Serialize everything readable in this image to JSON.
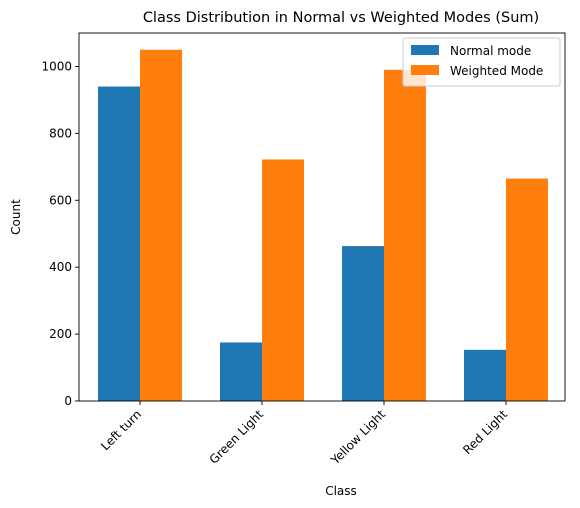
{
  "chart_data": {
    "type": "bar",
    "title": "Class Distribution in Normal vs Weighted Modes (Sum)",
    "xlabel": "Class",
    "ylabel": "Count",
    "categories": [
      "Left turn",
      "Green Light",
      "Yellow Light",
      "Red Light"
    ],
    "series": [
      {
        "name": "Normal mode",
        "color": "#1f77b4",
        "values": [
          940,
          175,
          463,
          153
        ]
      },
      {
        "name": "Weighted Mode",
        "color": "#ff7f0e",
        "values": [
          1050,
          722,
          990,
          665
        ]
      }
    ],
    "ylim": [
      0,
      1100
    ],
    "yticks": [
      0,
      200,
      400,
      600,
      800,
      1000
    ],
    "grid": false,
    "legend": "top-right"
  }
}
